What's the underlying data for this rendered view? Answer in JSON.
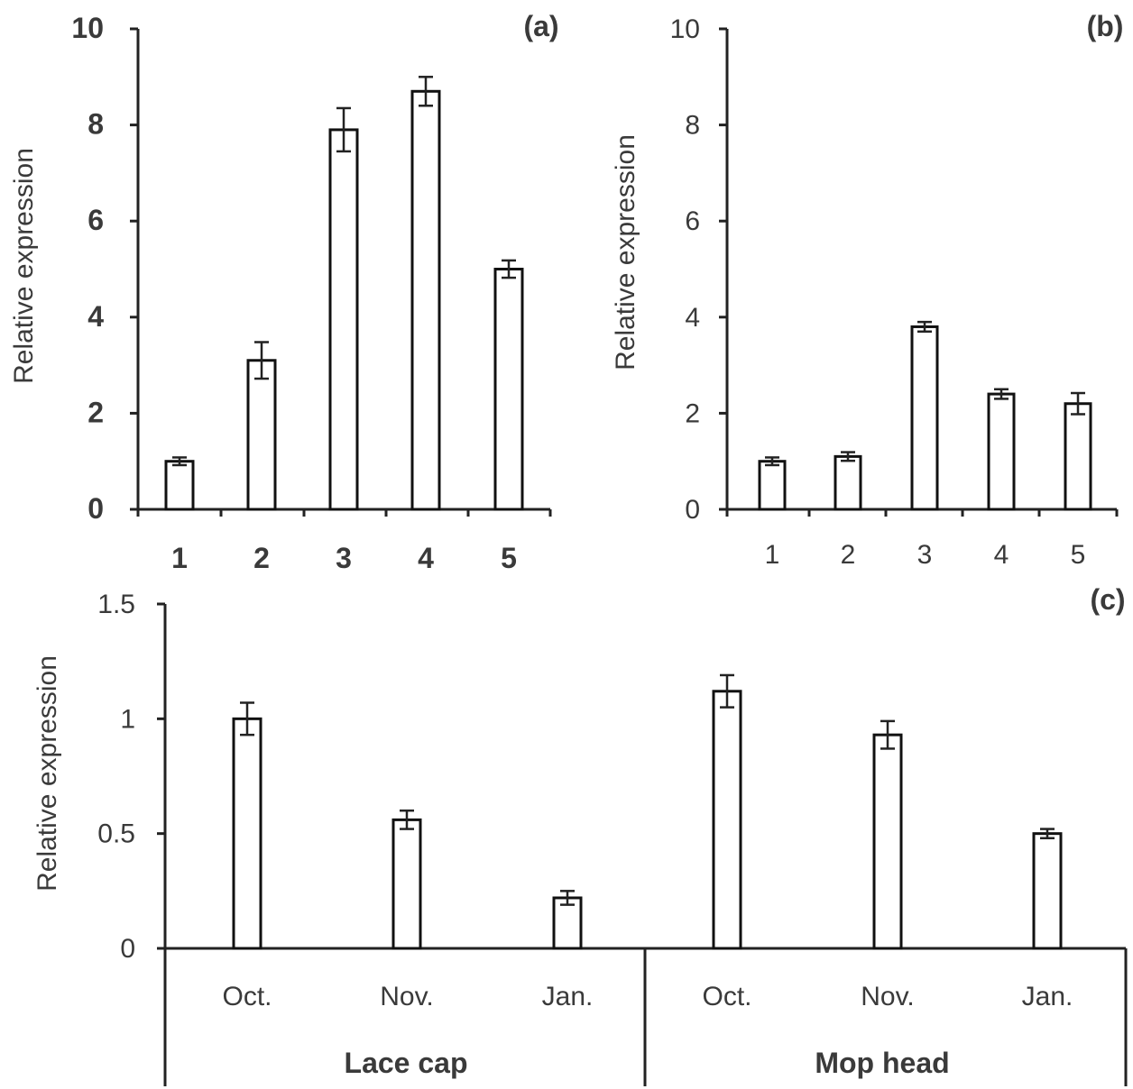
{
  "chart_data": [
    {
      "id": "a",
      "type": "bar",
      "panel_label": "(a)",
      "ylabel": "Relative expression",
      "xlabel": "",
      "ylim": [
        0,
        10
      ],
      "yticks": [
        "0",
        "2",
        "4",
        "6",
        "8",
        "10"
      ],
      "categories": [
        "1",
        "2",
        "3",
        "4",
        "5"
      ],
      "values": [
        1.0,
        3.1,
        7.9,
        8.7,
        5.0
      ],
      "errors": [
        0.08,
        0.38,
        0.45,
        0.3,
        0.18
      ]
    },
    {
      "id": "b",
      "type": "bar",
      "panel_label": "(b)",
      "ylabel": "Relative expression",
      "xlabel": "",
      "ylim": [
        0,
        10
      ],
      "yticks": [
        "0",
        "2",
        "4",
        "6",
        "8",
        "10"
      ],
      "categories": [
        "1",
        "2",
        "3",
        "4",
        "5"
      ],
      "values": [
        1.0,
        1.1,
        3.8,
        2.4,
        2.2
      ],
      "errors": [
        0.08,
        0.09,
        0.1,
        0.1,
        0.22
      ]
    },
    {
      "id": "c",
      "type": "bar",
      "panel_label": "(c)",
      "ylabel": "Relative expression",
      "xlabel": "",
      "ylim": [
        0,
        1.5
      ],
      "yticks": [
        "0",
        "0.5",
        "1",
        "1.5"
      ],
      "categories": [
        "Oct.",
        "Nov.",
        "Jan.",
        "Oct.",
        "Nov.",
        "Jan."
      ],
      "groups": [
        "Lace cap",
        "Mop head"
      ],
      "values": [
        1.0,
        0.56,
        0.22,
        1.12,
        0.93,
        0.5
      ],
      "errors": [
        0.07,
        0.04,
        0.03,
        0.07,
        0.06,
        0.02
      ]
    }
  ]
}
